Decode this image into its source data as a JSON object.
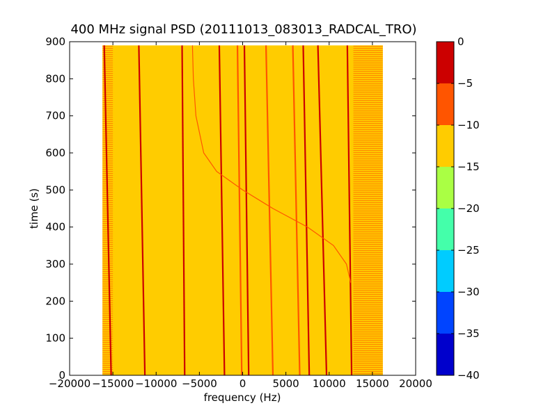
{
  "chart_data": {
    "type": "heatmap",
    "title": "400 MHz signal PSD (20111013_083013_RADCAL_TRO)",
    "xlabel": "frequency (Hz)",
    "ylabel": "time (s)",
    "xlim": [
      -20000,
      20000
    ],
    "ylim": [
      0,
      900
    ],
    "xticks": [
      -20000,
      -15000,
      -10000,
      -5000,
      0,
      5000,
      10000,
      15000,
      20000
    ],
    "xtick_labels": [
      "−20000",
      "−15000",
      "−10000",
      "−5000",
      "0",
      "5000",
      "10000",
      "15000",
      "20000"
    ],
    "yticks": [
      0,
      100,
      200,
      300,
      400,
      500,
      600,
      700,
      800,
      900
    ],
    "ytick_labels": [
      "0",
      "100",
      "200",
      "300",
      "400",
      "500",
      "600",
      "700",
      "800",
      "900"
    ],
    "data_extent": {
      "freq": [
        -16200,
        16200
      ],
      "time": [
        0,
        890
      ]
    },
    "background_level": -12,
    "band_edges": {
      "left": {
        "freq": [
          -16200,
          -15000
        ],
        "level": -9
      },
      "right": {
        "freq": [
          12800,
          16200
        ],
        "level": -9
      }
    },
    "tone_tracks": [
      {
        "f_start": -15200,
        "f_end": -16000,
        "level": -3
      },
      {
        "f_start": -11300,
        "f_end": -12000,
        "level": -3
      },
      {
        "f_start": -6700,
        "f_end": -7000,
        "level": -4
      },
      {
        "f_start": -2100,
        "f_end": -2700,
        "level": -4
      },
      {
        "f_start": -100,
        "f_end": -600,
        "level": -5
      },
      {
        "f_start": 700,
        "f_end": 200,
        "level": -3
      },
      {
        "f_start": 3500,
        "f_end": 2700,
        "level": -5
      },
      {
        "f_start": 6600,
        "f_end": 5800,
        "level": -5
      },
      {
        "f_start": 7700,
        "f_end": 7000,
        "level": -3
      },
      {
        "f_start": 9700,
        "f_end": 8700,
        "level": -4
      },
      {
        "f_start": 12600,
        "f_end": 12100,
        "level": -2
      }
    ],
    "sweep": {
      "points": [
        {
          "t": 250,
          "f": 12500
        },
        {
          "t": 300,
          "f": 12000
        },
        {
          "t": 350,
          "f": 10500
        },
        {
          "t": 400,
          "f": 7500
        },
        {
          "t": 450,
          "f": 3500
        },
        {
          "t": 500,
          "f": 0
        },
        {
          "t": 550,
          "f": -3000
        },
        {
          "t": 600,
          "f": -4500
        },
        {
          "t": 700,
          "f": -5400
        },
        {
          "t": 800,
          "f": -5700
        },
        {
          "t": 890,
          "f": -5800
        }
      ],
      "level": -5
    },
    "colorbar": {
      "range": [
        -40,
        0
      ],
      "ticks": [
        0,
        -5,
        -10,
        -15,
        -20,
        -25,
        -30,
        -35,
        -40
      ],
      "tick_labels": [
        "0",
        "−5",
        "−10",
        "−15",
        "−20",
        "−25",
        "−30",
        "−35",
        "−40"
      ],
      "bands": [
        {
          "from": -40,
          "to": -35,
          "color": "#0000cc"
        },
        {
          "from": -35,
          "to": -30,
          "color": "#0044ff"
        },
        {
          "from": -30,
          "to": -25,
          "color": "#00ccff"
        },
        {
          "from": -25,
          "to": -20,
          "color": "#44ffaa"
        },
        {
          "from": -20,
          "to": -15,
          "color": "#aaff44"
        },
        {
          "from": -15,
          "to": -10,
          "color": "#ffcc00"
        },
        {
          "from": -10,
          "to": -5,
          "color": "#ff5500"
        },
        {
          "from": -5,
          "to": 0,
          "color": "#cc0000"
        }
      ]
    }
  }
}
